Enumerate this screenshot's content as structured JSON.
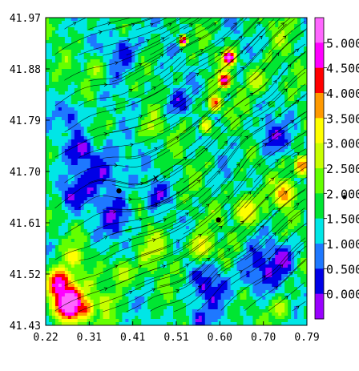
{
  "chart_data": {
    "type": "heatmap",
    "title": "",
    "xlabel": "",
    "ylabel": "",
    "xlim": [
      0.22,
      0.79
    ],
    "ylim": [
      41.43,
      41.97
    ],
    "x_ticks": [
      "0.22",
      "0.31",
      "0.41",
      "0.51",
      "0.60",
      "0.70",
      "0.79"
    ],
    "y_ticks": [
      "41.43",
      "41.52",
      "41.61",
      "41.70",
      "41.79",
      "41.88",
      "41.97"
    ],
    "overlay": "streamlines",
    "colorbar": {
      "levels": [
        "0.000",
        "0.500",
        "1.000",
        "1.500",
        "2.000",
        "2.500",
        "3.000",
        "3.500",
        "4.000",
        "4.500",
        "5.000"
      ],
      "colors": [
        "#9900ff",
        "#0000e6",
        "#1e78ff",
        "#00e6e6",
        "#00e632",
        "#64ff00",
        "#c8ff00",
        "#ffff00",
        "#ff9900",
        "#ff0000",
        "#ff00ff",
        "#ff66ff"
      ]
    },
    "markers": [
      {
        "x": 0.38,
        "y": 41.666,
        "symbol": "dot"
      },
      {
        "x": 0.597,
        "y": 41.615,
        "symbol": "dot"
      },
      {
        "x": 0.46,
        "y": 41.688,
        "symbol": "x",
        "label": "x"
      }
    ],
    "hotspots": [
      {
        "x": 0.27,
        "y": 41.47,
        "v": 5.0,
        "r": 0.045
      },
      {
        "x": 0.25,
        "y": 41.5,
        "v": 4.6,
        "r": 0.04
      },
      {
        "x": 0.3,
        "y": 41.46,
        "v": 3.8,
        "r": 0.035
      },
      {
        "x": 0.28,
        "y": 41.55,
        "v": 3.0,
        "r": 0.03
      },
      {
        "x": 0.62,
        "y": 41.9,
        "v": 4.8,
        "r": 0.02
      },
      {
        "x": 0.61,
        "y": 41.86,
        "v": 4.4,
        "r": 0.02
      },
      {
        "x": 0.59,
        "y": 41.82,
        "v": 3.8,
        "r": 0.02
      },
      {
        "x": 0.57,
        "y": 41.78,
        "v": 3.0,
        "r": 0.02
      },
      {
        "x": 0.52,
        "y": 41.93,
        "v": 4.5,
        "r": 0.012
      },
      {
        "x": 0.74,
        "y": 41.66,
        "v": 3.4,
        "r": 0.035
      },
      {
        "x": 0.78,
        "y": 41.71,
        "v": 3.6,
        "r": 0.025
      },
      {
        "x": 0.66,
        "y": 41.63,
        "v": 3.0,
        "r": 0.04
      },
      {
        "x": 0.56,
        "y": 41.57,
        "v": 2.8,
        "r": 0.04
      },
      {
        "x": 0.46,
        "y": 41.57,
        "v": 2.5,
        "r": 0.045
      },
      {
        "x": 0.39,
        "y": 41.52,
        "v": 2.4,
        "r": 0.04
      },
      {
        "x": 0.35,
        "y": 41.47,
        "v": 2.6,
        "r": 0.03
      },
      {
        "x": 0.68,
        "y": 41.86,
        "v": 2.4,
        "r": 0.04
      },
      {
        "x": 0.33,
        "y": 41.88,
        "v": 2.3,
        "r": 0.035
      },
      {
        "x": 0.73,
        "y": 41.46,
        "v": 2.4,
        "r": 0.035
      },
      {
        "x": 0.45,
        "y": 41.78,
        "v": 2.2,
        "r": 0.04
      },
      {
        "x": 0.74,
        "y": 41.95,
        "v": 2.0,
        "r": 0.035
      }
    ],
    "coldspots": [
      {
        "x": 0.35,
        "y": 41.7,
        "r": 0.05
      },
      {
        "x": 0.38,
        "y": 41.62,
        "r": 0.035
      },
      {
        "x": 0.27,
        "y": 41.66,
        "r": 0.03
      },
      {
        "x": 0.39,
        "y": 41.91,
        "r": 0.035
      },
      {
        "x": 0.28,
        "y": 41.8,
        "r": 0.025
      },
      {
        "x": 0.3,
        "y": 41.74,
        "r": 0.025
      },
      {
        "x": 0.68,
        "y": 41.52,
        "r": 0.04
      },
      {
        "x": 0.58,
        "y": 41.5,
        "r": 0.035
      },
      {
        "x": 0.74,
        "y": 41.55,
        "r": 0.03
      },
      {
        "x": 0.5,
        "y": 41.82,
        "r": 0.025
      },
      {
        "x": 0.71,
        "y": 41.76,
        "r": 0.03
      },
      {
        "x": 0.55,
        "y": 41.44,
        "r": 0.025
      },
      {
        "x": 0.46,
        "y": 41.66,
        "r": 0.02
      }
    ]
  }
}
